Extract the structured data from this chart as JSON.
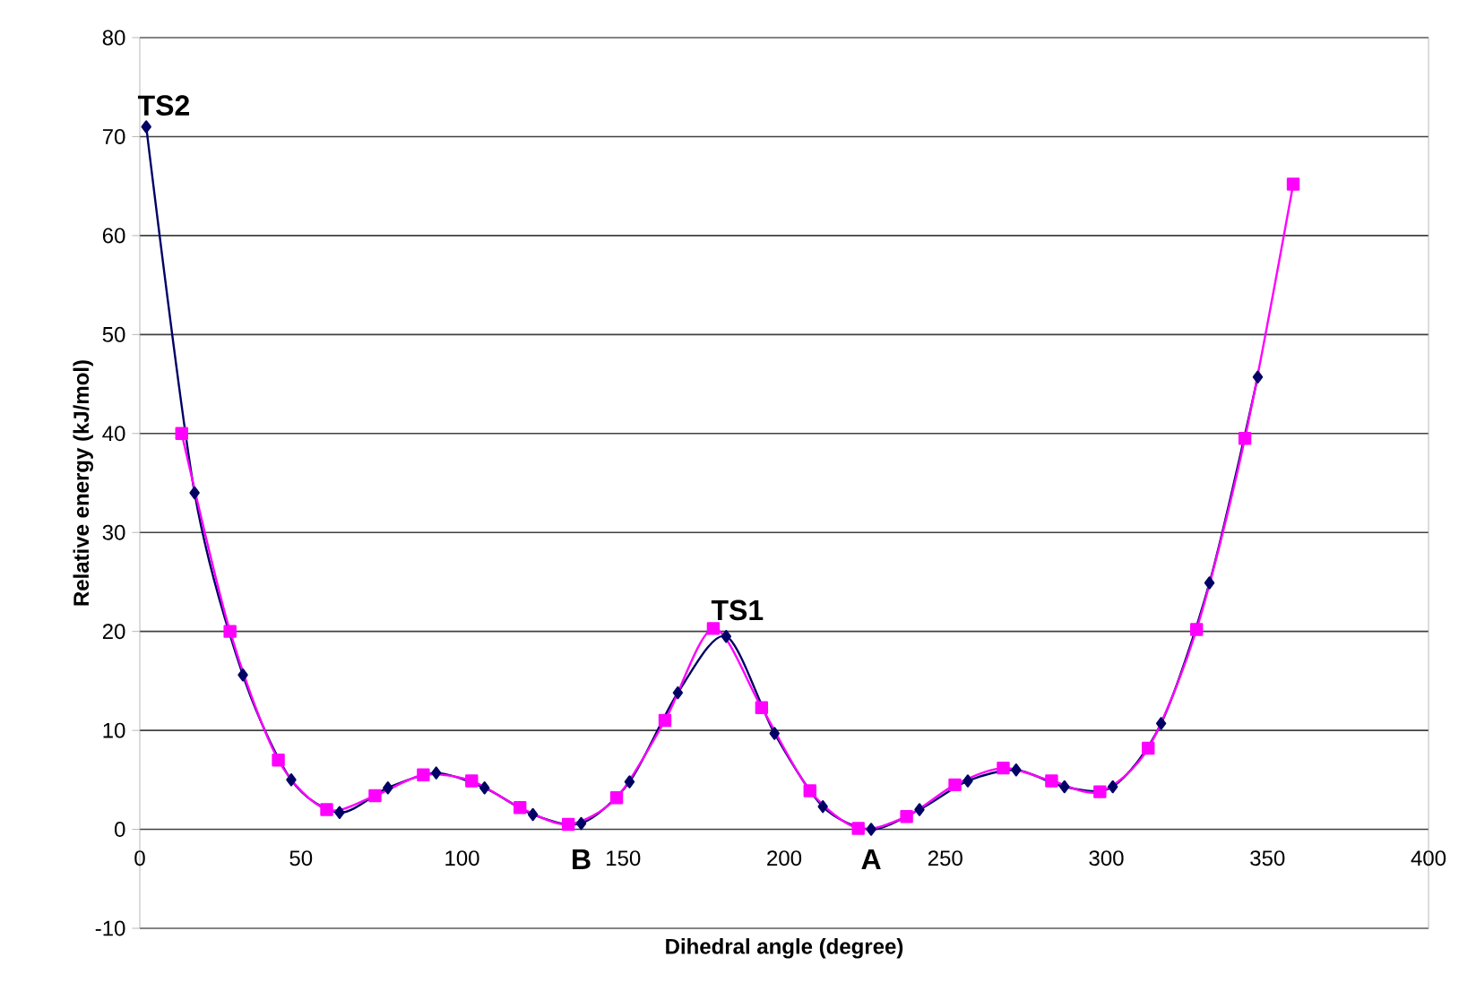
{
  "chart_data": {
    "type": "line",
    "xlabel": "Dihedral angle (degree)",
    "ylabel": "Relative energy (kJ/mol)",
    "xlim": [
      0,
      400
    ],
    "ylim": [
      -10,
      80
    ],
    "xticks": [
      0,
      50,
      100,
      150,
      200,
      250,
      300,
      350,
      400
    ],
    "yticks": [
      -10,
      0,
      10,
      20,
      30,
      40,
      50,
      60,
      70,
      80
    ],
    "grid": "y",
    "series": [
      {
        "color": "#000066",
        "marker": "diamond",
        "x": [
          2,
          17,
          32,
          47,
          62,
          77,
          92,
          107,
          122,
          137,
          152,
          167,
          182,
          197,
          212,
          227,
          242,
          257,
          272,
          287,
          302,
          317,
          332,
          347
        ],
        "values": [
          71,
          34,
          15.6,
          5,
          1.7,
          4.2,
          5.7,
          4.2,
          1.5,
          0.6,
          4.8,
          13.8,
          19.5,
          9.7,
          2.3,
          0,
          2.0,
          4.9,
          6.0,
          4.3,
          4.3,
          10.7,
          24.9,
          45.7
        ]
      },
      {
        "color": "#ff00ff",
        "marker": "square",
        "x": [
          13,
          28,
          43,
          58,
          73,
          88,
          103,
          118,
          133,
          148,
          163,
          178,
          193,
          208,
          223,
          238,
          253,
          268,
          283,
          298,
          313,
          328,
          343,
          358
        ],
        "values": [
          40,
          20,
          7,
          2,
          3.4,
          5.5,
          4.9,
          2.2,
          0.5,
          3.2,
          11,
          20.3,
          12.3,
          3.9,
          0.1,
          1.3,
          4.5,
          6.2,
          4.9,
          3.8,
          8.2,
          20.2,
          39.5,
          65.2
        ]
      }
    ],
    "annotations": [
      {
        "text": "TS2",
        "x": 2,
        "y": 71
      },
      {
        "text": "TS1",
        "x": 180,
        "y": 20
      },
      {
        "text": "B",
        "x": 137,
        "y": 0
      },
      {
        "text": "A",
        "x": 227,
        "y": 0
      }
    ]
  }
}
